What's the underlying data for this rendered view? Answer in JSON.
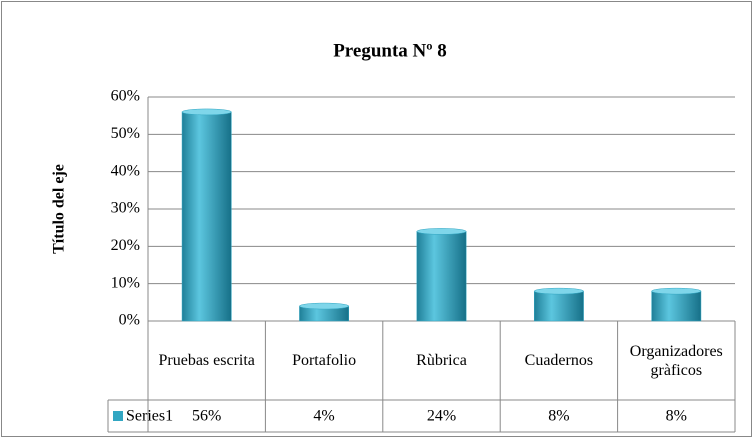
{
  "chart_data": {
    "type": "bar",
    "title": "Pregunta Nº 8",
    "y_label": "Título del eje",
    "categories": [
      "Pruebas escrita",
      "Portafolio",
      "Rùbrica",
      "Cuadernos",
      "Organizadores gràficos"
    ],
    "series": [
      {
        "name": "Series1",
        "color": "#31a6c2",
        "values": [
          56,
          4,
          24,
          8,
          8
        ],
        "value_labels": [
          "56%",
          "4%",
          "24%",
          "8%",
          "8%"
        ]
      }
    ],
    "ylim": [
      0,
      60
    ],
    "yticks": [
      {
        "value": 0,
        "label": "0%"
      },
      {
        "value": 10,
        "label": "10%"
      },
      {
        "value": 20,
        "label": "20%"
      },
      {
        "value": 30,
        "label": "30%"
      },
      {
        "value": 40,
        "label": "40%"
      },
      {
        "value": 50,
        "label": "50%"
      },
      {
        "value": 60,
        "label": "60%"
      }
    ],
    "grid": true
  }
}
